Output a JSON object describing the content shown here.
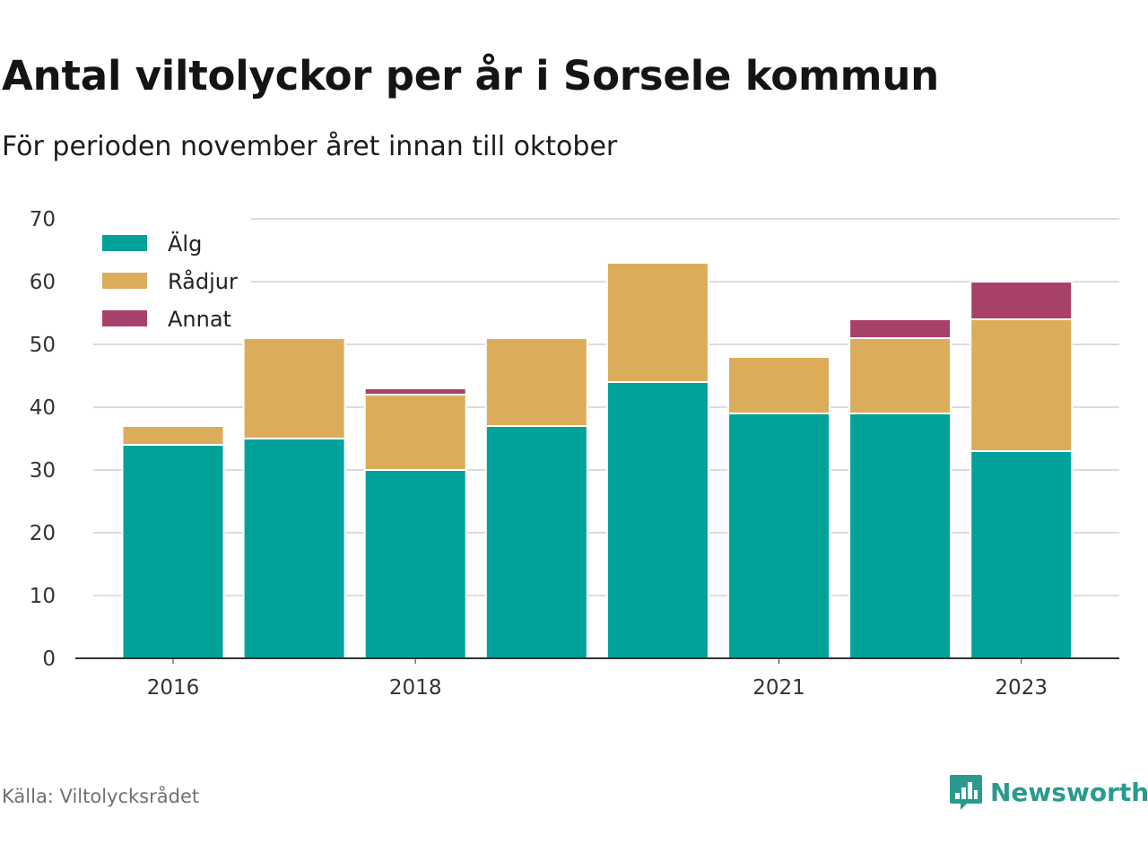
{
  "title": "Antal viltolyckor per år i Sorsele kommun",
  "subtitle": "För perioden november året innan till oktober",
  "source": "Källa: Viltolycksrådet",
  "brand": {
    "name": "Newsworthy",
    "icon": "newsworthy-bar-chart-icon",
    "color": "#2a9a8e"
  },
  "chart_data": {
    "type": "bar",
    "stacked": true,
    "categories": [
      "2016",
      "2017",
      "2018",
      "2019",
      "2020",
      "2021",
      "2022",
      "2023"
    ],
    "tick_labels": [
      "2016",
      "",
      "2018",
      "",
      "",
      "2021",
      "",
      "2023"
    ],
    "series": [
      {
        "name": "Älg",
        "color": "#00a29a",
        "values": [
          34,
          35,
          30,
          37,
          44,
          39,
          39,
          33
        ]
      },
      {
        "name": "Rådjur",
        "color": "#dbad5b",
        "values": [
          3,
          16,
          12,
          14,
          19,
          9,
          12,
          21
        ]
      },
      {
        "name": "Annat",
        "color": "#a8416a",
        "values": [
          0,
          0,
          1,
          0,
          0,
          0,
          3,
          6
        ]
      }
    ],
    "ylim": [
      0,
      70
    ],
    "yticks": [
      0,
      10,
      20,
      30,
      40,
      50,
      60,
      70
    ],
    "grid": true,
    "legend": "top-left"
  }
}
